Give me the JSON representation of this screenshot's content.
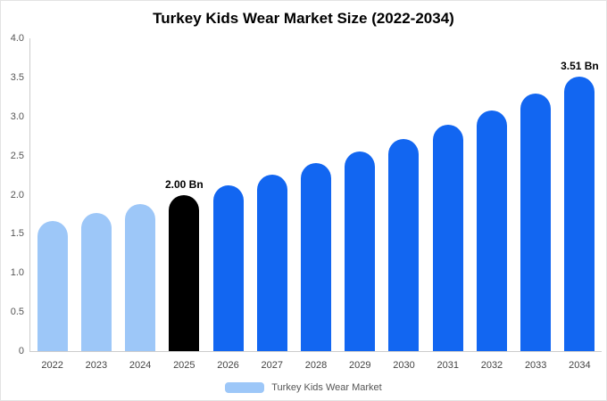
{
  "chart_data": {
    "type": "bar",
    "title": "Turkey Kids Wear Market Size (2022-2034)",
    "categories": [
      "2022",
      "2023",
      "2024",
      "2025",
      "2026",
      "2027",
      "2028",
      "2029",
      "2030",
      "2031",
      "2032",
      "2033",
      "2034"
    ],
    "values": [
      1.66,
      1.77,
      1.88,
      2.0,
      2.12,
      2.26,
      2.4,
      2.55,
      2.71,
      2.89,
      3.08,
      3.29,
      3.51
    ],
    "unit": "Bn",
    "ylim": [
      0,
      4.0
    ],
    "yticks": [
      "4.0",
      "3.5",
      "3.0",
      "2.5",
      "2.0",
      "1.5",
      "1.0",
      "0.5",
      "0"
    ],
    "grid": false,
    "bar_styles": [
      "past",
      "past",
      "past",
      "current",
      "forecast",
      "forecast",
      "forecast",
      "forecast",
      "forecast",
      "forecast",
      "forecast",
      "forecast",
      "forecast"
    ],
    "colors": {
      "past": "#9dc7f8",
      "current": "#000000",
      "forecast": "#1266f1"
    },
    "annotations": [
      {
        "index": 3,
        "text": "2.00 Bn"
      },
      {
        "index": 12,
        "text": "3.51 Bn"
      }
    ],
    "legend_position": "bottom",
    "legend": {
      "label": "Turkey Kids Wear Market",
      "swatch_color": "#9dc7f8"
    }
  }
}
